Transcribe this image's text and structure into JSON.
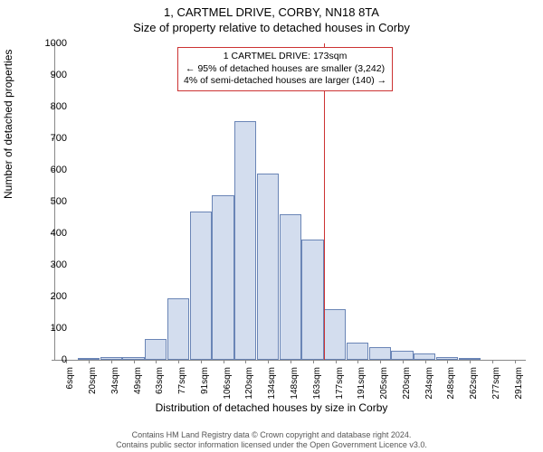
{
  "titles": {
    "line1": "1, CARTMEL DRIVE, CORBY, NN18 8TA",
    "line2": "Size of property relative to detached houses in Corby"
  },
  "ylabel": "Number of detached properties",
  "xlabel": "Distribution of detached houses by size in Corby",
  "footer": {
    "line1": "Contains HM Land Registry data © Crown copyright and database right 2024.",
    "line2": "Contains public sector information licensed under the Open Government Licence v3.0."
  },
  "chart": {
    "type": "histogram",
    "background_color": "#ffffff",
    "axis_color": "#888888",
    "ymax": 1000,
    "ytick_step": 100,
    "x_categories": [
      "6sqm",
      "20sqm",
      "34sqm",
      "49sqm",
      "63sqm",
      "77sqm",
      "91sqm",
      "106sqm",
      "120sqm",
      "134sqm",
      "148sqm",
      "163sqm",
      "177sqm",
      "191sqm",
      "205sqm",
      "220sqm",
      "234sqm",
      "248sqm",
      "262sqm",
      "277sqm",
      "291sqm"
    ],
    "bars": [
      0,
      5,
      10,
      8,
      65,
      195,
      470,
      520,
      755,
      590,
      460,
      380,
      160,
      55,
      40,
      30,
      20,
      10,
      5,
      0,
      0
    ],
    "bar_fill": "#d3ddee",
    "bar_stroke": "#6a85b6",
    "reference_line": {
      "index_after": 12,
      "color": "#cc3333",
      "value_sqm": 173
    },
    "annotation": {
      "border_color": "#cc3333",
      "line1": "1 CARTMEL DRIVE: 173sqm",
      "line2": "← 95% of detached houses are smaller (3,242)",
      "line3": "4% of semi-detached houses are larger (140) →"
    }
  }
}
